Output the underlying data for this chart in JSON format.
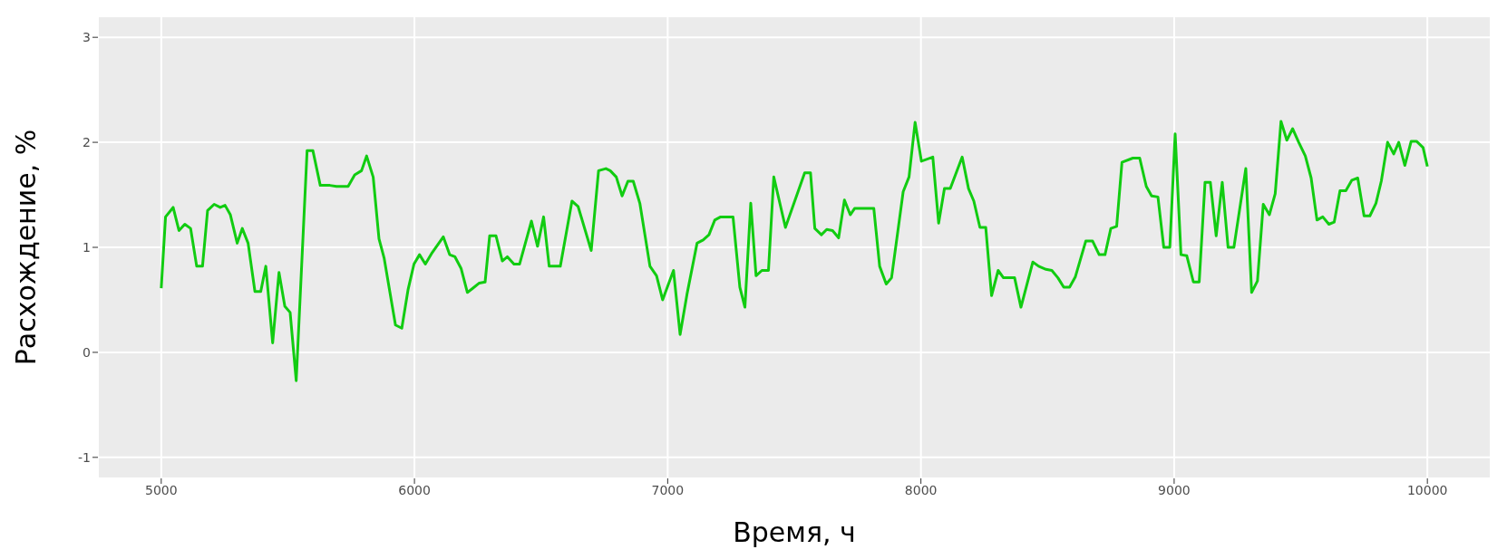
{
  "chart_data": {
    "type": "line",
    "xlabel": "Время, ч",
    "ylabel": "Расхождение, %",
    "xlim": [
      4750,
      10250
    ],
    "xticks": [
      5000,
      6000,
      7000,
      8000,
      9000,
      10000
    ],
    "ylim": [
      -1.2,
      3.2
    ],
    "yticks": [
      -1,
      0,
      1,
      2,
      3
    ],
    "grid": true,
    "line_style": "solid",
    "series": [
      {
        "color": "#11cc11",
        "x": [
          5000,
          5017,
          5047,
          5070,
          5093,
          5116,
          5140,
          5163,
          5183,
          5209,
          5233,
          5252,
          5273,
          5300,
          5320,
          5343,
          5370,
          5393,
          5413,
          5440,
          5465,
          5488,
          5509,
          5533,
          5576,
          5599,
          5628,
          5666,
          5692,
          5738,
          5764,
          5791,
          5811,
          5837,
          5860,
          5880,
          5925,
          5950,
          5975,
          5998,
          6020,
          6043,
          6070,
          6114,
          6139,
          6160,
          6184,
          6209,
          6230,
          6256,
          6279,
          6297,
          6322,
          6347,
          6367,
          6393,
          6415,
          6462,
          6486,
          6510,
          6532,
          6576,
          6622,
          6646,
          6698,
          6727,
          6756,
          6773,
          6797,
          6820,
          6843,
          6864,
          6890,
          6930,
          6956,
          6980,
          7023,
          7049,
          7076,
          7116,
          7140,
          7163,
          7186,
          7209,
          7258,
          7285,
          7305,
          7328,
          7349,
          7372,
          7398,
          7419,
          7465,
          7541,
          7564,
          7581,
          7607,
          7628,
          7651,
          7675,
          7698,
          7721,
          7738,
          7814,
          7837,
          7863,
          7884,
          7930,
          7953,
          7977,
          8002,
          8047,
          8070,
          8093,
          8116,
          8163,
          8188,
          8209,
          8233,
          8256,
          8279,
          8305,
          8326,
          8370,
          8395,
          8442,
          8465,
          8494,
          8517,
          8541,
          8564,
          8587,
          8610,
          8651,
          8678,
          8704,
          8727,
          8750,
          8773,
          8794,
          8837,
          8864,
          8890,
          8911,
          8936,
          8959,
          8983,
          9004,
          9027,
          9050,
          9076,
          9099,
          9122,
          9143,
          9166,
          9190,
          9213,
          9236,
          9283,
          9306,
          9329,
          9352,
          9376,
          9399,
          9422,
          9445,
          9468,
          9492,
          9518,
          9541,
          9564,
          9587,
          9611,
          9632,
          9655,
          9678,
          9702,
          9725,
          9750,
          9773,
          9797,
          9818,
          9843,
          9867,
          9887,
          9911,
          9936,
          9957,
          9983,
          10000
        ],
        "values": [
          0.61,
          1.29,
          1.38,
          1.16,
          1.22,
          1.18,
          0.82,
          0.82,
          1.35,
          1.41,
          1.38,
          1.4,
          1.31,
          1.04,
          1.18,
          1.04,
          0.58,
          0.58,
          0.82,
          0.09,
          0.76,
          0.44,
          0.38,
          -0.27,
          1.92,
          1.92,
          1.59,
          1.59,
          1.58,
          1.58,
          1.69,
          1.73,
          1.87,
          1.67,
          1.08,
          0.9,
          0.26,
          0.23,
          0.6,
          0.84,
          0.93,
          0.84,
          0.95,
          1.1,
          0.93,
          0.91,
          0.8,
          0.57,
          0.61,
          0.66,
          0.67,
          1.11,
          1.11,
          0.87,
          0.91,
          0.84,
          0.84,
          1.25,
          1.01,
          1.29,
          0.82,
          0.82,
          1.44,
          1.39,
          0.97,
          1.73,
          1.75,
          1.73,
          1.67,
          1.49,
          1.63,
          1.63,
          1.42,
          0.82,
          0.73,
          0.5,
          0.78,
          0.17,
          0.55,
          1.04,
          1.07,
          1.12,
          1.26,
          1.29,
          1.29,
          0.62,
          0.43,
          1.42,
          0.73,
          0.78,
          0.78,
          1.67,
          1.19,
          1.71,
          1.71,
          1.18,
          1.12,
          1.17,
          1.16,
          1.09,
          1.45,
          1.31,
          1.37,
          1.37,
          0.82,
          0.65,
          0.71,
          1.53,
          1.67,
          2.19,
          1.82,
          1.86,
          1.23,
          1.56,
          1.56,
          1.86,
          1.56,
          1.44,
          1.19,
          1.19,
          0.54,
          0.78,
          0.71,
          0.71,
          0.43,
          0.86,
          0.82,
          0.79,
          0.78,
          0.71,
          0.62,
          0.62,
          0.72,
          1.06,
          1.06,
          0.93,
          0.93,
          1.18,
          1.2,
          1.81,
          1.85,
          1.85,
          1.58,
          1.49,
          1.48,
          1,
          1,
          2.08,
          0.93,
          0.92,
          0.67,
          0.67,
          1.62,
          1.62,
          1.11,
          1.62,
          1,
          1,
          1.75,
          0.57,
          0.68,
          1.41,
          1.31,
          1.51,
          2.2,
          2.02,
          2.13,
          2,
          1.87,
          1.66,
          1.26,
          1.29,
          1.22,
          1.24,
          1.54,
          1.54,
          1.64,
          1.66,
          1.3,
          1.3,
          1.42,
          1.63,
          2,
          1.89,
          2,
          1.78,
          2.01,
          2.01,
          1.95,
          1.77
        ]
      }
    ]
  }
}
